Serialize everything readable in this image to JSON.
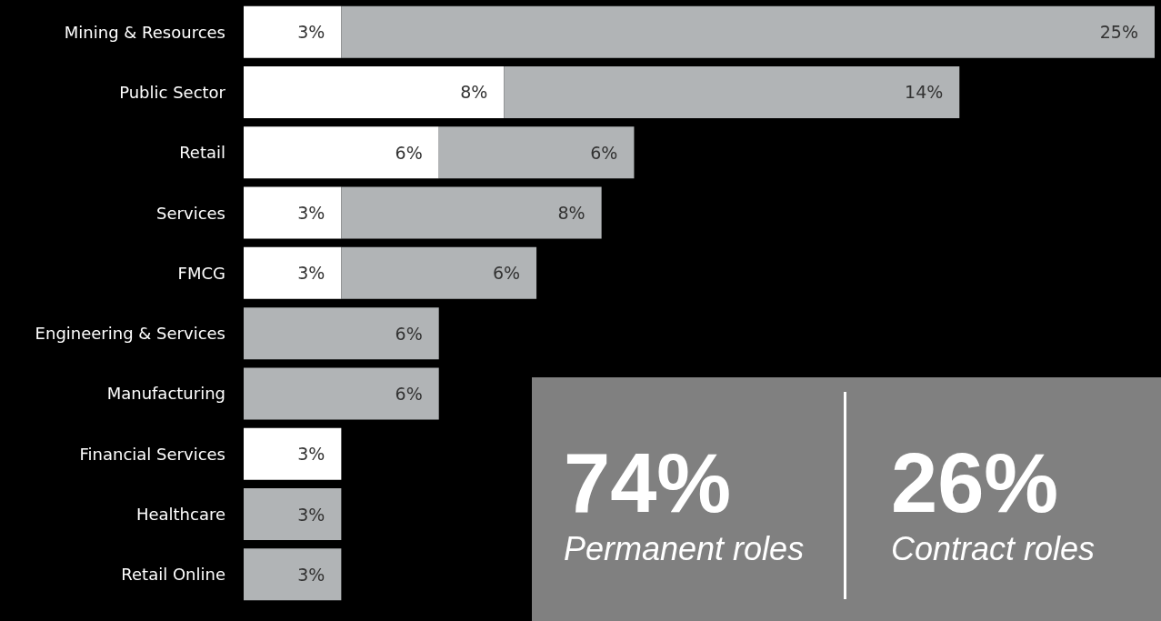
{
  "chart_data": {
    "type": "bar",
    "orientation": "horizontal",
    "stacked": true,
    "categories": [
      "Mining & Resources",
      "Public Sector",
      "Retail",
      "Services",
      "FMCG",
      "Engineering & Services",
      "Manufacturing",
      "Financial Services",
      "Healthcare",
      "Retail Online"
    ],
    "series": [
      {
        "color": "#ffffff",
        "values": [
          3,
          8,
          6,
          3,
          3,
          null,
          null,
          3,
          null,
          null
        ],
        "value_labels": [
          "3%",
          "8%",
          "6%",
          "3%",
          "3%",
          null,
          null,
          "3%",
          null,
          null
        ]
      },
      {
        "color": "#b1b4b6",
        "values": [
          25,
          14,
          6,
          8,
          6,
          6,
          6,
          null,
          3,
          3
        ],
        "value_labels": [
          "25%",
          "14%",
          "6%",
          "8%",
          "6%",
          "6%",
          "6%",
          null,
          "3%",
          "3%"
        ]
      }
    ],
    "annotations": [
      "74%",
      "Permanent roles",
      "26%",
      "Contract roles"
    ]
  }
}
